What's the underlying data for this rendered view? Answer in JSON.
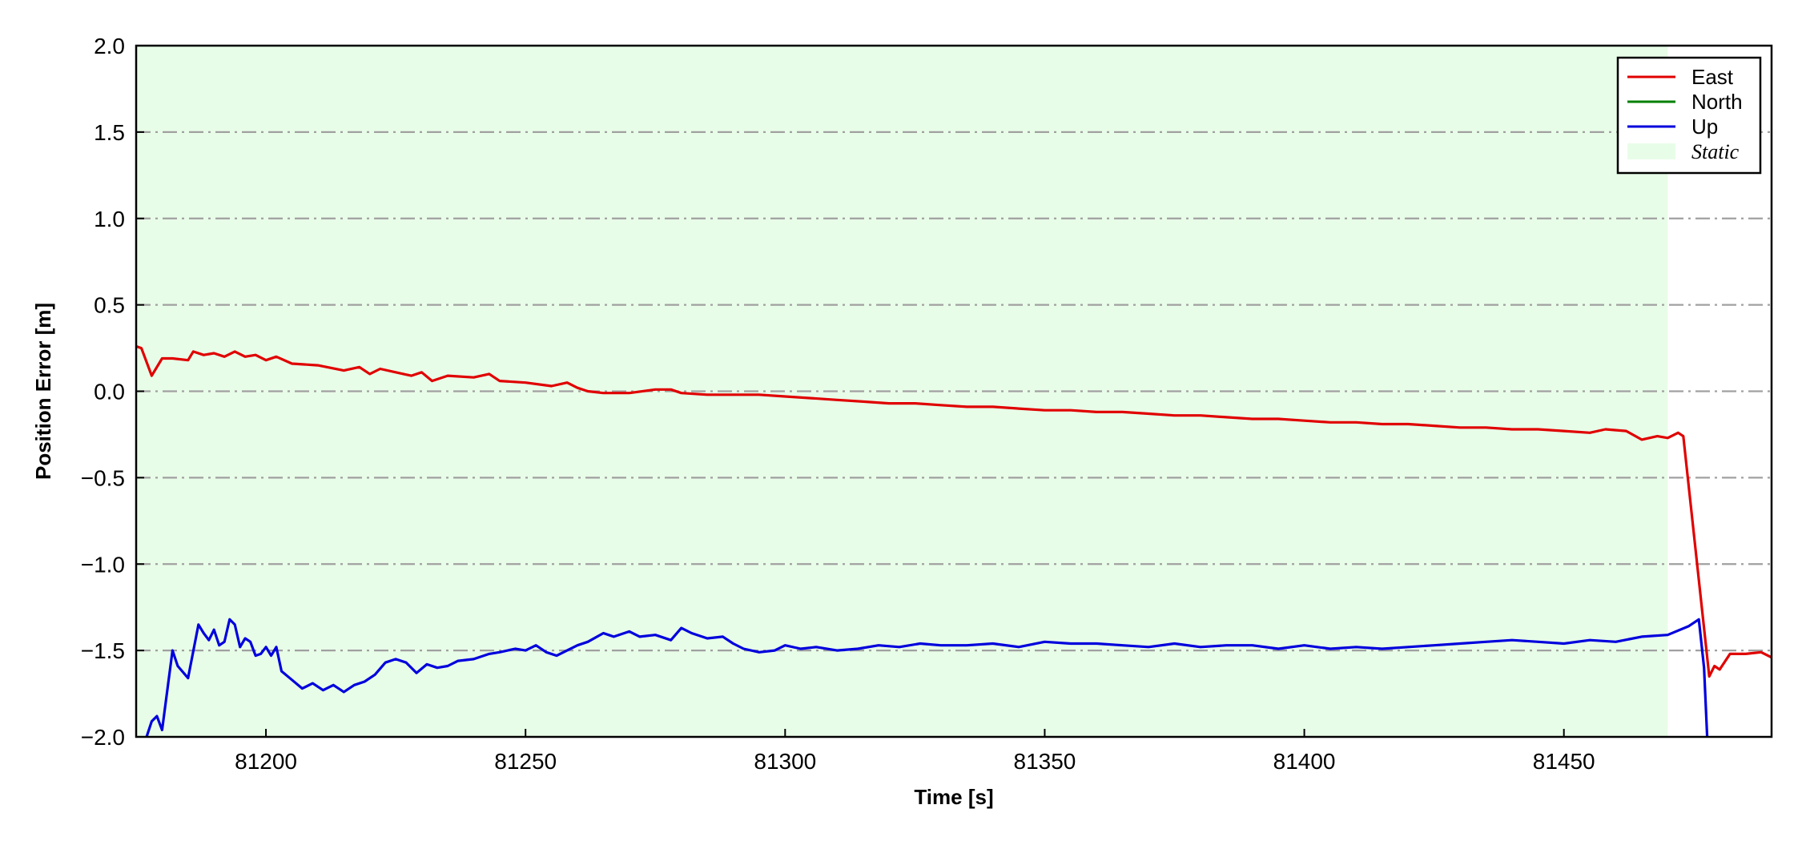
{
  "chart_data": {
    "type": "line",
    "xlabel": "Time [s]",
    "ylabel": "Position Error [m]",
    "xlim": [
      81175,
      81490
    ],
    "ylim": [
      -2.0,
      2.0
    ],
    "xticks": [
      81200,
      81250,
      81300,
      81350,
      81400,
      81450
    ],
    "xtick_labels": [
      "81200",
      "81250",
      "81300",
      "81350",
      "81400",
      "81450"
    ],
    "yticks": [
      -2.0,
      -1.5,
      -1.0,
      -0.5,
      0.0,
      0.5,
      1.0,
      1.5,
      2.0
    ],
    "ytick_labels": [
      "−2.0",
      "−1.5",
      "−1.0",
      "−0.5",
      "0.0",
      "0.5",
      "1.0",
      "1.5",
      "2.0"
    ],
    "grid": "horizontal dash-dot",
    "legend_position": "top-right",
    "shaded_regions": [
      {
        "name": "Static",
        "x_start": 81175,
        "x_end": 81470,
        "color": "#e8fde8"
      }
    ],
    "series": [
      {
        "name": "East",
        "color": "#e00000",
        "points": [
          [
            81175,
            0.26
          ],
          [
            81176,
            0.25
          ],
          [
            81178,
            0.09
          ],
          [
            81180,
            0.19
          ],
          [
            81182,
            0.19
          ],
          [
            81185,
            0.18
          ],
          [
            81186,
            0.23
          ],
          [
            81188,
            0.21
          ],
          [
            81190,
            0.22
          ],
          [
            81192,
            0.2
          ],
          [
            81194,
            0.23
          ],
          [
            81196,
            0.2
          ],
          [
            81198,
            0.21
          ],
          [
            81200,
            0.18
          ],
          [
            81202,
            0.2
          ],
          [
            81205,
            0.16
          ],
          [
            81210,
            0.15
          ],
          [
            81215,
            0.12
          ],
          [
            81218,
            0.14
          ],
          [
            81220,
            0.1
          ],
          [
            81222,
            0.13
          ],
          [
            81225,
            0.11
          ],
          [
            81228,
            0.09
          ],
          [
            81230,
            0.11
          ],
          [
            81232,
            0.06
          ],
          [
            81235,
            0.09
          ],
          [
            81240,
            0.08
          ],
          [
            81243,
            0.1
          ],
          [
            81245,
            0.06
          ],
          [
            81250,
            0.05
          ],
          [
            81255,
            0.03
          ],
          [
            81258,
            0.05
          ],
          [
            81260,
            0.02
          ],
          [
            81262,
            0.0
          ],
          [
            81265,
            -0.01
          ],
          [
            81270,
            -0.01
          ],
          [
            81275,
            0.01
          ],
          [
            81278,
            0.01
          ],
          [
            81280,
            -0.01
          ],
          [
            81285,
            -0.02
          ],
          [
            81290,
            -0.02
          ],
          [
            81295,
            -0.02
          ],
          [
            81300,
            -0.03
          ],
          [
            81305,
            -0.04
          ],
          [
            81310,
            -0.05
          ],
          [
            81315,
            -0.06
          ],
          [
            81320,
            -0.07
          ],
          [
            81325,
            -0.07
          ],
          [
            81330,
            -0.08
          ],
          [
            81335,
            -0.09
          ],
          [
            81340,
            -0.09
          ],
          [
            81345,
            -0.1
          ],
          [
            81350,
            -0.11
          ],
          [
            81355,
            -0.11
          ],
          [
            81360,
            -0.12
          ],
          [
            81365,
            -0.12
          ],
          [
            81370,
            -0.13
          ],
          [
            81375,
            -0.14
          ],
          [
            81380,
            -0.14
          ],
          [
            81385,
            -0.15
          ],
          [
            81390,
            -0.16
          ],
          [
            81395,
            -0.16
          ],
          [
            81400,
            -0.17
          ],
          [
            81405,
            -0.18
          ],
          [
            81410,
            -0.18
          ],
          [
            81415,
            -0.19
          ],
          [
            81420,
            -0.19
          ],
          [
            81425,
            -0.2
          ],
          [
            81430,
            -0.21
          ],
          [
            81435,
            -0.21
          ],
          [
            81440,
            -0.22
          ],
          [
            81445,
            -0.22
          ],
          [
            81450,
            -0.23
          ],
          [
            81455,
            -0.24
          ],
          [
            81458,
            -0.22
          ],
          [
            81462,
            -0.23
          ],
          [
            81465,
            -0.28
          ],
          [
            81468,
            -0.26
          ],
          [
            81470,
            -0.27
          ],
          [
            81472,
            -0.24
          ],
          [
            81473,
            -0.26
          ],
          [
            81478,
            -1.65
          ],
          [
            81479,
            -1.59
          ],
          [
            81480,
            -1.61
          ],
          [
            81482,
            -1.52
          ],
          [
            81485,
            -1.52
          ],
          [
            81488,
            -1.51
          ],
          [
            81490,
            -1.54
          ]
        ]
      },
      {
        "name": "North",
        "color": "#008000",
        "points": []
      },
      {
        "name": "Up",
        "color": "#0000dd",
        "points": [
          [
            81177,
            -2.0
          ],
          [
            81178,
            -1.91
          ],
          [
            81179,
            -1.88
          ],
          [
            81180,
            -1.96
          ],
          [
            81182,
            -1.5
          ],
          [
            81183,
            -1.59
          ],
          [
            81185,
            -1.66
          ],
          [
            81187,
            -1.35
          ],
          [
            81188,
            -1.4
          ],
          [
            81189,
            -1.44
          ],
          [
            81190,
            -1.38
          ],
          [
            81191,
            -1.47
          ],
          [
            81192,
            -1.45
          ],
          [
            81193,
            -1.32
          ],
          [
            81194,
            -1.35
          ],
          [
            81195,
            -1.48
          ],
          [
            81196,
            -1.43
          ],
          [
            81197,
            -1.45
          ],
          [
            81198,
            -1.53
          ],
          [
            81199,
            -1.52
          ],
          [
            81200,
            -1.48
          ],
          [
            81201,
            -1.53
          ],
          [
            81202,
            -1.48
          ],
          [
            81203,
            -1.62
          ],
          [
            81205,
            -1.67
          ],
          [
            81207,
            -1.72
          ],
          [
            81209,
            -1.69
          ],
          [
            81211,
            -1.73
          ],
          [
            81213,
            -1.7
          ],
          [
            81215,
            -1.74
          ],
          [
            81217,
            -1.7
          ],
          [
            81219,
            -1.68
          ],
          [
            81221,
            -1.64
          ],
          [
            81223,
            -1.57
          ],
          [
            81225,
            -1.55
          ],
          [
            81227,
            -1.57
          ],
          [
            81229,
            -1.63
          ],
          [
            81231,
            -1.58
          ],
          [
            81233,
            -1.6
          ],
          [
            81235,
            -1.59
          ],
          [
            81237,
            -1.56
          ],
          [
            81240,
            -1.55
          ],
          [
            81243,
            -1.52
          ],
          [
            81245,
            -1.51
          ],
          [
            81248,
            -1.49
          ],
          [
            81250,
            -1.5
          ],
          [
            81252,
            -1.47
          ],
          [
            81254,
            -1.51
          ],
          [
            81256,
            -1.53
          ],
          [
            81258,
            -1.5
          ],
          [
            81260,
            -1.47
          ],
          [
            81262,
            -1.45
          ],
          [
            81265,
            -1.4
          ],
          [
            81267,
            -1.42
          ],
          [
            81270,
            -1.39
          ],
          [
            81272,
            -1.42
          ],
          [
            81275,
            -1.41
          ],
          [
            81278,
            -1.44
          ],
          [
            81280,
            -1.37
          ],
          [
            81282,
            -1.4
          ],
          [
            81285,
            -1.43
          ],
          [
            81288,
            -1.42
          ],
          [
            81290,
            -1.46
          ],
          [
            81292,
            -1.49
          ],
          [
            81295,
            -1.51
          ],
          [
            81298,
            -1.5
          ],
          [
            81300,
            -1.47
          ],
          [
            81303,
            -1.49
          ],
          [
            81306,
            -1.48
          ],
          [
            81310,
            -1.5
          ],
          [
            81314,
            -1.49
          ],
          [
            81318,
            -1.47
          ],
          [
            81322,
            -1.48
          ],
          [
            81326,
            -1.46
          ],
          [
            81330,
            -1.47
          ],
          [
            81335,
            -1.47
          ],
          [
            81340,
            -1.46
          ],
          [
            81345,
            -1.48
          ],
          [
            81350,
            -1.45
          ],
          [
            81355,
            -1.46
          ],
          [
            81360,
            -1.46
          ],
          [
            81365,
            -1.47
          ],
          [
            81370,
            -1.48
          ],
          [
            81375,
            -1.46
          ],
          [
            81380,
            -1.48
          ],
          [
            81385,
            -1.47
          ],
          [
            81390,
            -1.47
          ],
          [
            81395,
            -1.49
          ],
          [
            81400,
            -1.47
          ],
          [
            81405,
            -1.49
          ],
          [
            81410,
            -1.48
          ],
          [
            81415,
            -1.49
          ],
          [
            81420,
            -1.48
          ],
          [
            81425,
            -1.47
          ],
          [
            81430,
            -1.46
          ],
          [
            81435,
            -1.45
          ],
          [
            81440,
            -1.44
          ],
          [
            81445,
            -1.45
          ],
          [
            81450,
            -1.46
          ],
          [
            81455,
            -1.44
          ],
          [
            81460,
            -1.45
          ],
          [
            81465,
            -1.42
          ],
          [
            81470,
            -1.41
          ],
          [
            81474,
            -1.36
          ],
          [
            81476,
            -1.32
          ],
          [
            81477,
            -1.6
          ],
          [
            81477.6,
            -2.0
          ]
        ]
      }
    ]
  }
}
